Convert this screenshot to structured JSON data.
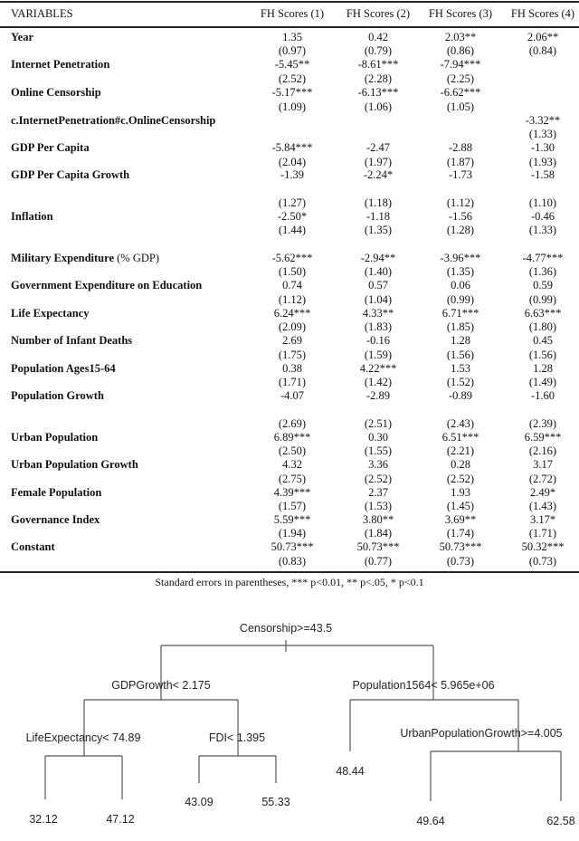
{
  "table": {
    "header": [
      "VARIABLES",
      "FH Scores (1)",
      "FH Scores (2)",
      "FH Scores (3)",
      "FH Scores (4)"
    ],
    "rows": [
      {
        "label": "Year",
        "coef": [
          "1.35",
          "0.42",
          "2.03**",
          "2.06**"
        ],
        "se": [
          "(0.97)",
          "(0.79)",
          "(0.86)",
          "(0.84)"
        ]
      },
      {
        "label": "Internet Penetration",
        "coef": [
          "-5.45**",
          "-8.61***",
          "-7.94***",
          ""
        ],
        "se": [
          "(2.52)",
          "(2.28)",
          "(2.25)",
          ""
        ]
      },
      {
        "label": "Online Censorship",
        "coef": [
          "-5.17***",
          "-6.13***",
          "-6.62***",
          ""
        ],
        "se": [
          "(1.09)",
          "(1.06)",
          "(1.05)",
          ""
        ]
      },
      {
        "label": "c.InternetPenetration#c.OnlineCensorship",
        "coef": [
          "",
          "",
          "",
          "-3.32**"
        ],
        "se": [
          "",
          "",
          "",
          "(1.33)"
        ]
      },
      {
        "label": "GDP Per Capita",
        "coef": [
          "-5.84***",
          "-2.47",
          "-2.88",
          "-1.30"
        ],
        "se": [
          "(2.04)",
          "(1.97)",
          "(1.87)",
          "(1.93)"
        ]
      },
      {
        "label": "GDP Per Capita Growth",
        "coef": [
          "-1.39",
          "-2.24*",
          "-1.73",
          "-1.58"
        ],
        "se": [
          "(1.27)",
          "(1.18)",
          "(1.12)",
          "(1.10)"
        ]
      },
      {
        "label": "Inflation",
        "coef": [
          "-2.50*",
          "-1.18",
          "-1.56",
          "-0.46"
        ],
        "se": [
          "(1.44)",
          "(1.35)",
          "(1.28)",
          "(1.33)"
        ]
      },
      {
        "label": "Military Expenditure (% GDP)",
        "coef": [
          "-5.62***",
          "-2.94**",
          "-3.96***",
          "-4.77***"
        ],
        "se": [
          "(1.50)",
          "(1.40)",
          "(1.35)",
          "(1.36)"
        ]
      },
      {
        "label": "Government Expenditure on Education",
        "coef": [
          "0.74",
          "0.57",
          "0.06",
          "0.59"
        ],
        "se": [
          "(1.12)",
          "(1.04)",
          "(0.99)",
          "(0.99)"
        ]
      },
      {
        "label": "Life Expectancy",
        "coef": [
          "6.24***",
          "4.33**",
          "6.71***",
          "6.63***"
        ],
        "se": [
          "(2.09)",
          "(1.83)",
          "(1.85)",
          "(1.80)"
        ]
      },
      {
        "label": "Number of Infant Deaths",
        "coef": [
          "2.69",
          "-0.16",
          "1.28",
          "0.45"
        ],
        "se": [
          "(1.75)",
          "(1.59)",
          "(1.56)",
          "(1.56)"
        ]
      },
      {
        "label": "Population Ages15-64",
        "coef": [
          "0.38",
          "4.22***",
          "1.53",
          "1.28"
        ],
        "se": [
          "(1.71)",
          "(1.42)",
          "(1.52)",
          "(1.49)"
        ]
      },
      {
        "label": "Population Growth",
        "coef": [
          "-4.07",
          "-2.89",
          "-0.89",
          "-1.60"
        ],
        "se": [
          "(2.69)",
          "(2.51)",
          "(2.43)",
          "(2.39)"
        ]
      },
      {
        "label": "Urban Population",
        "coef": [
          "6.89***",
          "0.30",
          "6.51***",
          "6.59***"
        ],
        "se": [
          "(2.50)",
          "(1.55)",
          "(2.21)",
          "(2.16)"
        ]
      },
      {
        "label": "Urban Population Growth",
        "coef": [
          "4.32",
          "3.36",
          "0.28",
          "3.17"
        ],
        "se": [
          "(2.75)",
          "(2.52)",
          "(2.52)",
          "(2.72)"
        ]
      },
      {
        "label": "Female Population",
        "coef": [
          "4.39***",
          "2.37",
          "1.93",
          "2.49*"
        ],
        "se": [
          "(1.57)",
          "(1.53)",
          "(1.45)",
          "(1.43)"
        ]
      },
      {
        "label": "Governance Index",
        "coef": [
          "5.59***",
          "3.80**",
          "3.69**",
          "3.17*"
        ],
        "se": [
          "(1.94)",
          "(1.84)",
          "(1.74)",
          "(1.71)"
        ]
      },
      {
        "label": "Constant",
        "coef": [
          "50.73***",
          "50.73***",
          "50.73***",
          "50.32***"
        ],
        "se": [
          "(0.83)",
          "(0.77)",
          "(0.73)",
          "(0.73)"
        ]
      }
    ],
    "caption": "Standard errors in parentheses, *** p<0.01, ** p<.05, * p<0.1"
  },
  "tree": {
    "splits": {
      "root": "Censorship>=43.5",
      "left": "GDPGrowth< 2.175",
      "right": "Population1564< 5.965e+06",
      "left_left": "LifeExpectancy< 74.89",
      "left_right": "FDI< 1.395",
      "right_right": "UrbanPopulationGrowth>=4.005"
    },
    "leaves": {
      "ll_l": "32.12",
      "ll_r": "47.12",
      "lr_l": "43.09",
      "lr_r": "55.33",
      "r_l": "48.44",
      "rr_l": "49.64",
      "rr_r": "62.58"
    }
  }
}
